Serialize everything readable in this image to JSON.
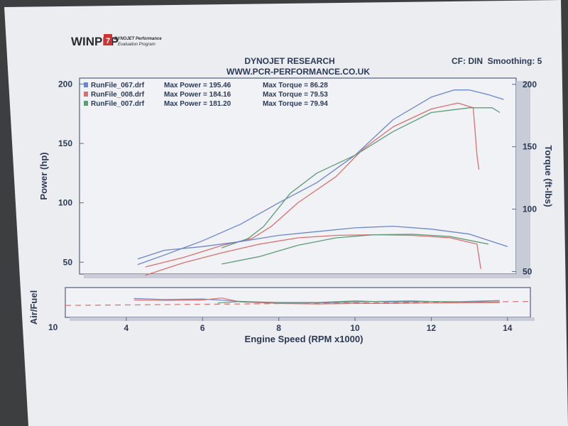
{
  "logo": {
    "name": "WINPEP",
    "tag": "7",
    "line1": "DYNOJET Performance",
    "line2": "Evaluation Program"
  },
  "header": {
    "title": "DYNOJET RESEARCH",
    "url": "WWW.PCR-PERFORMANCE.CO.UK",
    "cf": "CF: DIN  Smoothing: 5"
  },
  "legend": [
    {
      "file": "RunFile_067.drf",
      "power": "Max Power = 195.46",
      "torque": "Max Torque = 86.28",
      "color": "#6b86c9"
    },
    {
      "file": "RunFile_008.drf",
      "power": "Max Power = 184.16",
      "torque": "Max Torque = 79.53",
      "color": "#d9706f"
    },
    {
      "file": "RunFile_007.drf",
      "power": "Max Power = 181.20",
      "torque": "Max Torque = 79.94",
      "color": "#5e9b78"
    }
  ],
  "chart_data": [
    {
      "type": "line",
      "ylabel": "Power (hp)",
      "y2label": "Torque (ft-lbs)",
      "xlim": [
        2.4,
        14.6
      ],
      "ylim": [
        40,
        205
      ],
      "yticks": [
        50,
        100,
        150,
        200
      ],
      "y2ticks": [
        50,
        100,
        150,
        200
      ],
      "series": [
        {
          "name": "RunFile_067.drf",
          "measure": "Power",
          "color": "#6b86c9",
          "points": [
            [
              4.3,
              48
            ],
            [
              5,
              56
            ],
            [
              6,
              68
            ],
            [
              7,
              82
            ],
            [
              8,
              100
            ],
            [
              9,
              117
            ],
            [
              10,
              140
            ],
            [
              11,
              170
            ],
            [
              12,
              189
            ],
            [
              12.6,
              195
            ],
            [
              13,
              195
            ],
            [
              13.5,
              191
            ],
            [
              13.9,
              187
            ]
          ]
        },
        {
          "name": "RunFile_008.drf",
          "measure": "Power",
          "color": "#d9706f",
          "points": [
            [
              4.5,
              46
            ],
            [
              5.5,
              54
            ],
            [
              6.5,
              64
            ],
            [
              7.3,
              70
            ],
            [
              7.8,
              80
            ],
            [
              8.5,
              100
            ],
            [
              9.5,
              122
            ],
            [
              10.2,
              145
            ],
            [
              11,
              164
            ],
            [
              12,
              179
            ],
            [
              12.7,
              184
            ],
            [
              13.1,
              180
            ],
            [
              13.2,
              140
            ],
            [
              13.25,
              128
            ]
          ]
        },
        {
          "name": "RunFile_007.drf",
          "measure": "Power",
          "color": "#5e9b78",
          "points": [
            [
              6.5,
              62
            ],
            [
              7.2,
              70
            ],
            [
              7.6,
              80
            ],
            [
              8.3,
              108
            ],
            [
              9,
              125
            ],
            [
              10,
              140
            ],
            [
              11,
              160
            ],
            [
              12,
              176
            ],
            [
              13,
              180
            ],
            [
              13.6,
              180
            ],
            [
              13.8,
              176
            ]
          ]
        },
        {
          "name": "RunFile_067.drf",
          "measure": "Torque",
          "color": "#6b86c9",
          "points": [
            [
              4.3,
              60
            ],
            [
              5,
              67
            ],
            [
              6,
              70
            ],
            [
              7,
              74
            ],
            [
              8,
              79
            ],
            [
              9,
              82
            ],
            [
              10,
              85
            ],
            [
              11,
              86.3
            ],
            [
              12,
              84
            ],
            [
              13,
              80
            ],
            [
              14,
              70
            ]
          ]
        },
        {
          "name": "RunFile_008.drf",
          "measure": "Torque",
          "color": "#d9706f",
          "points": [
            [
              4.5,
              47
            ],
            [
              5.5,
              57
            ],
            [
              6.5,
              65
            ],
            [
              7.5,
              72
            ],
            [
              8.5,
              77
            ],
            [
              9.5,
              79
            ],
            [
              10.5,
              79.5
            ],
            [
              11.5,
              79
            ],
            [
              12.5,
              77
            ],
            [
              13.2,
              72
            ],
            [
              13.3,
              52
            ]
          ]
        },
        {
          "name": "RunFile_007.drf",
          "measure": "Torque",
          "color": "#5e9b78",
          "points": [
            [
              6.5,
              56
            ],
            [
              7.5,
              62
            ],
            [
              8.5,
              71
            ],
            [
              9.5,
              77
            ],
            [
              10.5,
              79.5
            ],
            [
              11.5,
              79.9
            ],
            [
              12.5,
              78
            ],
            [
              13.5,
              72
            ]
          ]
        }
      ]
    },
    {
      "type": "line",
      "xlabel": "Engine Speed (RPM x1000)",
      "ylabel": "Air/Fuel",
      "ytick_label": "10",
      "xticks": [
        4,
        6,
        8,
        10,
        12,
        14
      ],
      "xlim": [
        2.4,
        14.6
      ],
      "ylim": [
        10,
        16
      ],
      "series": [
        {
          "name": "RunFile_067.drf",
          "color": "#6b86c9",
          "points": [
            [
              4.2,
              13.8
            ],
            [
              5,
              13.6
            ],
            [
              6,
              13.7
            ],
            [
              6.6,
              13.4
            ],
            [
              7.5,
              13.0
            ],
            [
              8.5,
              12.9
            ],
            [
              9.5,
              13.0
            ],
            [
              10.5,
              13.2
            ],
            [
              11.5,
              13.3
            ],
            [
              12.5,
              13.1
            ],
            [
              13.8,
              13.4
            ]
          ]
        },
        {
          "name": "RunFile_008.drf",
          "color": "#d9706f",
          "points": [
            [
              4.2,
              13.5
            ],
            [
              5,
              13.4
            ],
            [
              6,
              13.5
            ],
            [
              6.5,
              13.9
            ],
            [
              7,
              13.1
            ],
            [
              8,
              12.8
            ],
            [
              9,
              12.7
            ],
            [
              10,
              12.8
            ],
            [
              11,
              12.8
            ],
            [
              12,
              12.9
            ],
            [
              13.8,
              13.0
            ]
          ]
        },
        {
          "name": "RunFile_007.drf",
          "color": "#5e9b78",
          "points": [
            [
              6.4,
              12.9
            ],
            [
              7,
              13.2
            ],
            [
              8,
              13.0
            ],
            [
              9,
              13.0
            ],
            [
              10,
              13.3
            ],
            [
              11,
              13.1
            ],
            [
              12,
              13.2
            ],
            [
              13.8,
              13.1
            ]
          ]
        },
        {
          "name": "target",
          "color": "#d9706f",
          "dashed": true,
          "points": [
            [
              2.4,
              12.4
            ],
            [
              14.6,
              13.2
            ]
          ]
        }
      ]
    }
  ]
}
